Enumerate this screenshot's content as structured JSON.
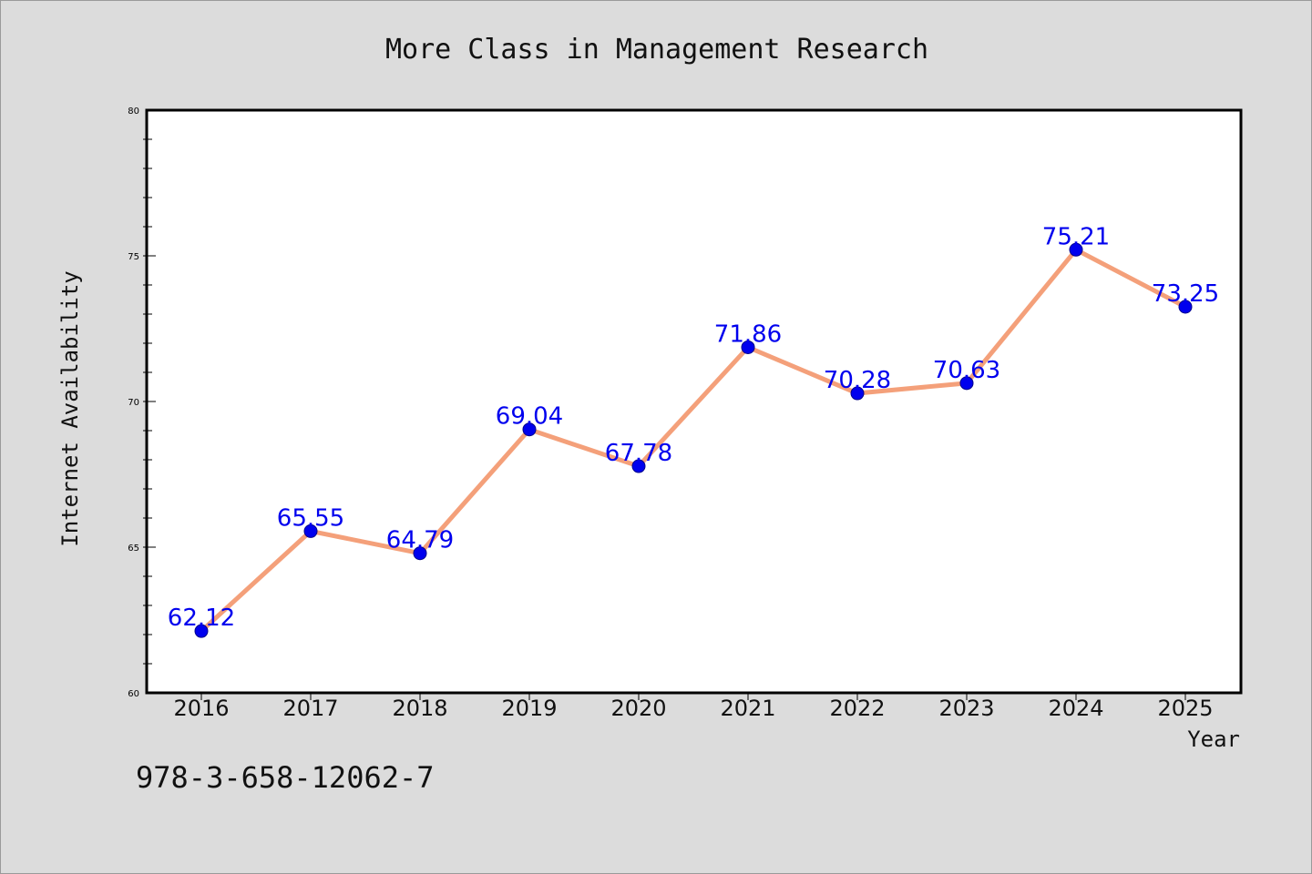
{
  "chart_data": {
    "type": "line",
    "title": "More Class in Management Research",
    "xlabel": "Year",
    "ylabel": "Internet Availability",
    "categories": [
      "2016",
      "2017",
      "2018",
      "2019",
      "2020",
      "2021",
      "2022",
      "2023",
      "2024",
      "2025"
    ],
    "series": [
      {
        "values": [
          62.12,
          65.55,
          64.79,
          69.04,
          67.78,
          71.86,
          70.28,
          70.63,
          75.21,
          73.25
        ],
        "labels": [
          "62.12",
          "65.55",
          "64.79",
          "69.04",
          "67.78",
          "71.86",
          "70.28",
          "70.63",
          "75.21",
          "73.25"
        ]
      }
    ],
    "ylim": [
      60,
      80
    ],
    "yticks": [
      "60",
      "65",
      "70",
      "75",
      "80"
    ],
    "grid": false,
    "colors": {
      "line": "#f4a07a",
      "marker": "#0000ee",
      "data_label": "#0000ee",
      "plot_background": "#ffffff",
      "figure_background": "#dcdcdc"
    }
  },
  "footer": {
    "isbn": "978-3-658-12062-7"
  }
}
